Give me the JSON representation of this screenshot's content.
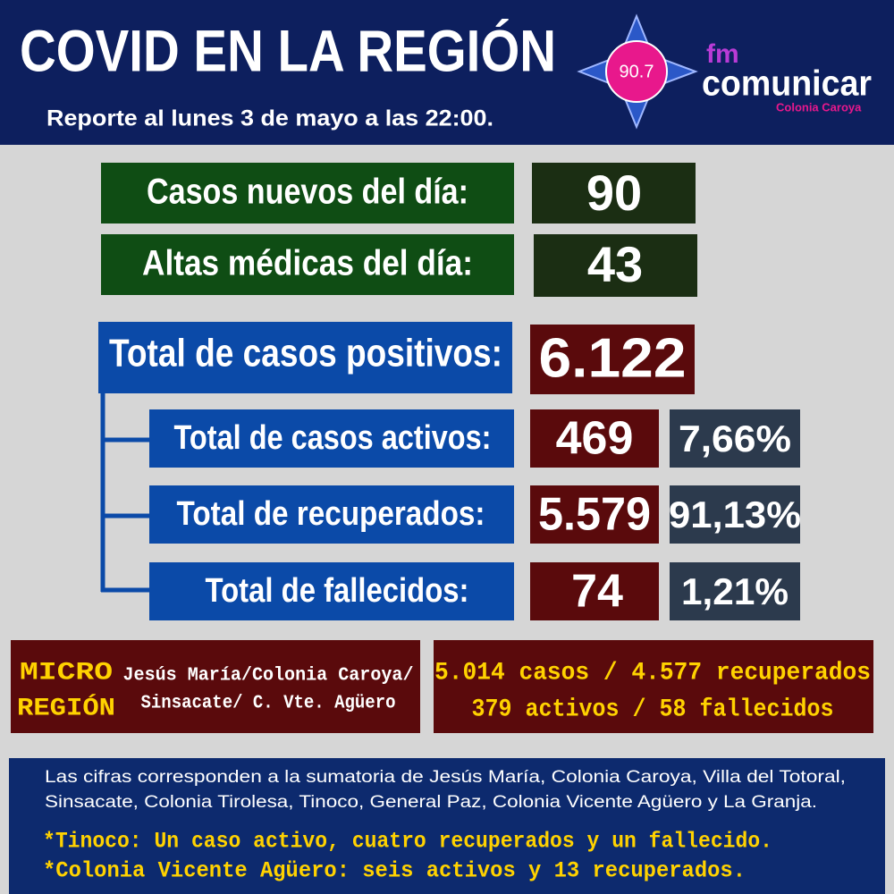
{
  "header": {
    "title": "COVID EN LA REGIÓN",
    "subtitle": "Reporte al lunes 3 de mayo a las 22:00."
  },
  "logo": {
    "frequency": "90.7",
    "prefix": "fm",
    "brand": "comunicar",
    "location": "Colonia Caroya"
  },
  "daily": [
    {
      "label": "Casos nuevos del día:",
      "value": "90"
    },
    {
      "label": "Altas médicas del día:",
      "value": "43"
    }
  ],
  "total": {
    "label": "Total de casos positivos:",
    "value": "6.122"
  },
  "breakdown": [
    {
      "label": "Total de casos activos:",
      "value": "469",
      "percent": "7,66%"
    },
    {
      "label": "Total de recuperados:",
      "value": "5.579",
      "percent": "91,13%"
    },
    {
      "label": "Total de fallecidos:",
      "value": "74",
      "percent": "1,21%"
    }
  ],
  "micro_region": {
    "label_lines": [
      "MICRO",
      "REGIÓN"
    ],
    "places_lines": [
      "Jesús María/Colonia Caroya/",
      "Sinsacate/ C. Vte. Agüero"
    ],
    "summary_lines": [
      "5.014 casos / 4.577 recuperados",
      "379 activos  / 58 fallecidos"
    ]
  },
  "footer": {
    "note_lines": [
      "Las cifras corresponden a la sumatoria de Jesús María, Colonia Caroya, Villa del Totoral,",
      "Sinsacate, Colonia Tirolesa, Tinoco, General Paz, Colonia Vicente Agüero  y La Granja."
    ],
    "highlights": [
      "*Tinoco: Un caso activo, cuatro recuperados y un fallecido.",
      "*Colonia Vicente Agüero: seis activos y 13 recuperados."
    ]
  }
}
